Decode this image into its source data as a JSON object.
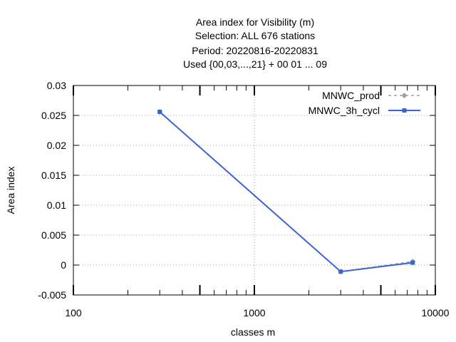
{
  "chart_data": {
    "type": "line",
    "title_lines": [
      "Area index  for Visibility (m)",
      "Selection: ALL    676 stations",
      "Period: 20220816-20220831",
      "Used {00,03,...,21} + 00 01 ... 09"
    ],
    "xlabel": "classes m",
    "ylabel": "Area index",
    "x_scale": "log",
    "xlim": [
      100,
      10000
    ],
    "ylim": [
      -0.005,
      0.03
    ],
    "x_ticks": [
      "100",
      "1000",
      "10000"
    ],
    "y_ticks": [
      "-0.005",
      "0",
      "0.005",
      "0.01",
      "0.015",
      "0.02",
      "0.025",
      "0.03"
    ],
    "grid": true,
    "legend_position": "top-right",
    "series": [
      {
        "name": "MNWC_prod",
        "color": "#a0a0a0",
        "line_style": "dashed",
        "marker": "diamond",
        "x": [
          300,
          3000,
          7500
        ],
        "y": [
          0.0256,
          -0.0011,
          0.0006
        ]
      },
      {
        "name": "MNWC_3h_cycl",
        "color": "#3a64d4",
        "line_style": "solid",
        "marker": "square",
        "x": [
          300,
          3000,
          7500
        ],
        "y": [
          0.0256,
          -0.0011,
          0.0004
        ]
      }
    ]
  }
}
